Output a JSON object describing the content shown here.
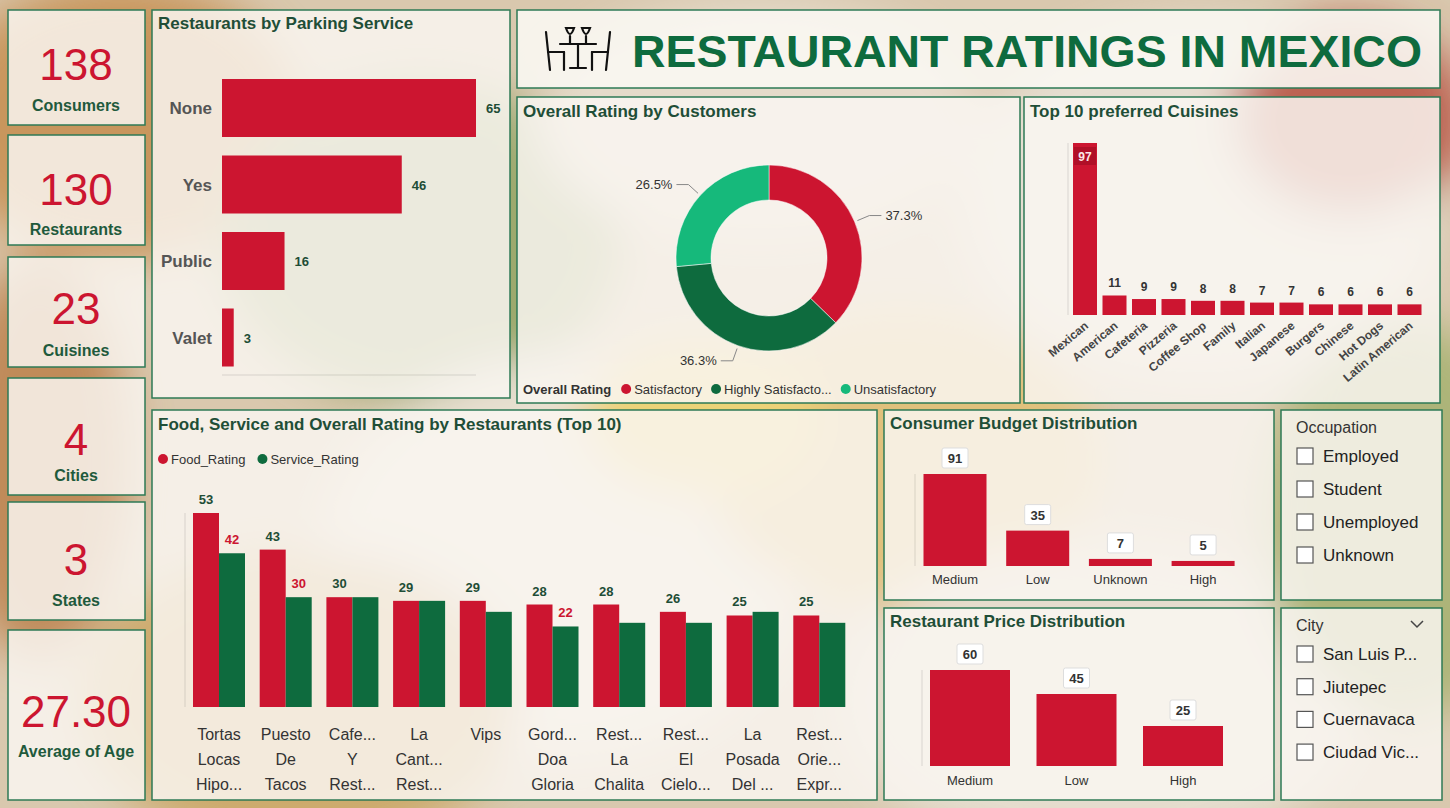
{
  "title": "RESTAURANT RATINGS IN MEXICO",
  "cards": [
    {
      "value": 138,
      "label": "Consumers"
    },
    {
      "value": 130,
      "label": "Restaurants"
    },
    {
      "value": 23,
      "label": "Cuisines"
    },
    {
      "value": 4,
      "label": "Cities"
    },
    {
      "value": 3,
      "label": "States"
    },
    {
      "value": 27.3,
      "value_label": "27.30",
      "label": "Average of Age"
    }
  ],
  "chart_data": [
    {
      "type": "bar",
      "title": "Restaurants by Parking Service",
      "orientation": "horizontal",
      "categories": [
        "None",
        "Yes",
        "Public",
        "Valet"
      ],
      "values": [
        65,
        46,
        16,
        3
      ],
      "color": "#cc1530",
      "xlim": [
        0,
        65
      ],
      "xticks": [],
      "data_labels": true,
      "tick_labels": "y"
    },
    {
      "type": "donut",
      "title": "Overall Rating by Customers",
      "legend_title": "Overall Rating",
      "categories": [
        "Satisfactory",
        "Highly Satisfacto...",
        "Unsatisfactory"
      ],
      "values": [
        37.3,
        36.3,
        26.5
      ],
      "value_labels": [
        "37.3%",
        "36.3%",
        "26.5%"
      ],
      "colors": [
        "#cc1530",
        "#0e6b3e",
        "#16b97b"
      ],
      "legend": "bottom",
      "data_labels": true
    },
    {
      "type": "bar",
      "title": "Top 10 preferred Cuisines",
      "categories": [
        "Mexican",
        "American",
        "Cafeteria",
        "Pizzeria",
        "Coffee Shop",
        "Family",
        "Italian",
        "Japanese",
        "Burgers",
        "Chinese",
        "Hot Dogs",
        "Latin American"
      ],
      "values": [
        97,
        11,
        9,
        9,
        8,
        8,
        7,
        7,
        6,
        6,
        6,
        6
      ],
      "color": "#cc1530",
      "ylim": [
        0,
        97
      ],
      "yticks": [],
      "data_labels": true,
      "tick_labels": "x"
    },
    {
      "type": "bar",
      "title": "Food, Service and Overall Rating by Restaurants (Top 10)",
      "categories": [
        "Tortas\nLocas\nHipo...",
        "Puesto\nDe\nTacos",
        "Cafe...\nY\nRest...",
        "La\nCant...\nRest...",
        "Vips",
        "Gord...\nDoa\nGloria",
        "Rest...\nLa\nChalita",
        "Rest...\nEl\nCielo...",
        "La\nPosada\nDel ...",
        "Rest...\nOrie...\nExpr..."
      ],
      "series": [
        {
          "name": "Food_Rating",
          "color": "#cc1530",
          "values": [
            53,
            43,
            30,
            29,
            29,
            28,
            28,
            26,
            25,
            25
          ]
        },
        {
          "name": "Service_Rating",
          "color": "#0e6b3e",
          "values": [
            42,
            30,
            30,
            29,
            26,
            22,
            23,
            23,
            26,
            23
          ],
          "value_labels": [
            "42",
            "30",
            null,
            null,
            null,
            "22",
            null,
            null,
            null,
            null
          ]
        }
      ],
      "ylim": [
        0,
        53
      ],
      "yticks": [],
      "data_labels": true,
      "legend": "top-left",
      "tick_labels": "x"
    },
    {
      "type": "bar",
      "title": "Consumer Budget Distribution",
      "categories": [
        "Medium",
        "Low",
        "Unknown",
        "High"
      ],
      "values": [
        91,
        35,
        7,
        5
      ],
      "color": "#cc1530",
      "ylim": [
        0,
        91
      ],
      "yticks": [],
      "data_labels": true,
      "tick_labels": "x"
    },
    {
      "type": "bar",
      "title": "Restaurant Price Distribution",
      "categories": [
        "Medium",
        "Low",
        "High"
      ],
      "values": [
        60,
        45,
        25
      ],
      "color": "#cc1530",
      "ylim": [
        0,
        60
      ],
      "yticks": [],
      "data_labels": true,
      "tick_labels": "x"
    }
  ],
  "slicers": [
    {
      "title": "Occupation",
      "items": [
        "Employed",
        "Student",
        "Unemployed",
        "Unknown"
      ]
    },
    {
      "title": "City",
      "items": [
        "San Luis P...",
        "Jiutepec",
        "Cuernavaca",
        "Ciudad Vic..."
      ]
    }
  ]
}
